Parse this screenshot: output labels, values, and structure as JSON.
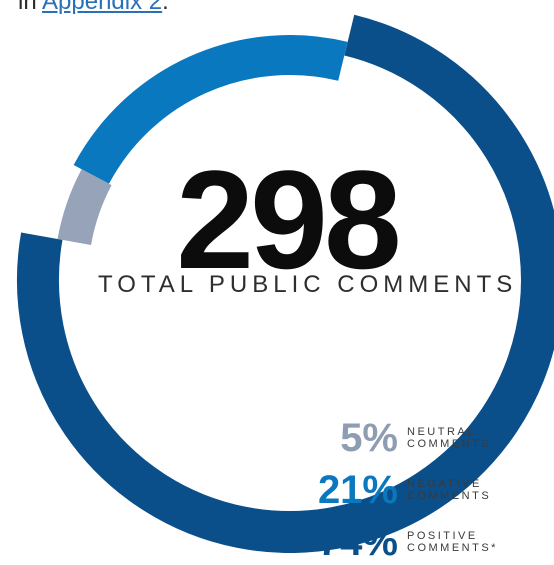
{
  "intro": {
    "prefix": "in ",
    "link": "Appendix 2",
    "suffix": "."
  },
  "summary": {
    "total": "298",
    "label": "TOTAL PUBLIC COMMENTS"
  },
  "colors": {
    "positive": "#0a4f8a",
    "negative": "#0a78be",
    "neutral": "#96a3b8",
    "text": "#0c0c0c"
  },
  "legend": [
    {
      "pct": "5%",
      "line1": "NEUTRAL",
      "line2": "COMMENTS",
      "color": "#8f9db2"
    },
    {
      "pct": "21%",
      "line1": "NEGATIVE",
      "line2": "COMMENTS",
      "color": "#0a78be"
    },
    {
      "pct": "74%",
      "line1": "POSITIVE",
      "line2": "COMMENTS*",
      "color": "#0a4f8a"
    }
  ],
  "chart_data": {
    "type": "pie",
    "style": "donut-arc",
    "total": 298,
    "categories": [
      "Positive comments",
      "Negative comments",
      "Neutral comments"
    ],
    "values": [
      74,
      21,
      5
    ]
  }
}
